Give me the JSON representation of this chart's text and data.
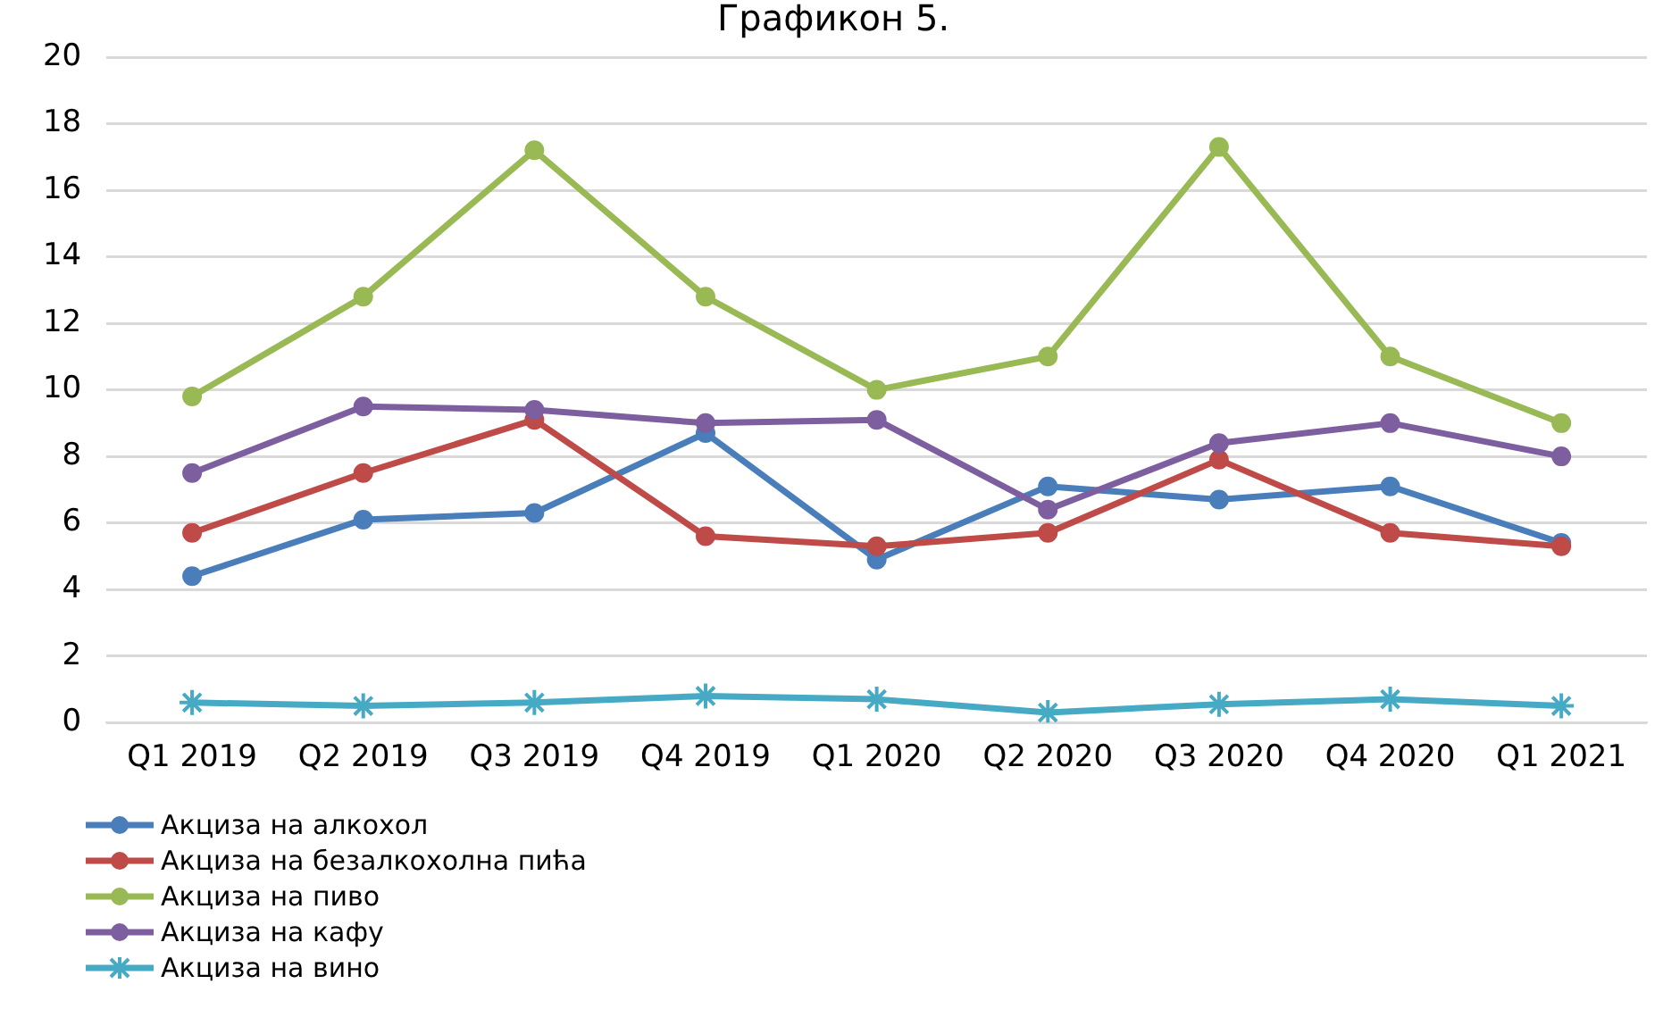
{
  "chart_data": {
    "type": "line",
    "title": "Графикон 5.",
    "categories": [
      "Q1 2019",
      "Q2 2019",
      "Q3 2019",
      "Q4 2019",
      "Q1 2020",
      "Q2 2020",
      "Q3 2020",
      "Q4 2020",
      "Q1 2021"
    ],
    "series": [
      {
        "name": "Акциза на алкохол",
        "color": "#4a7ebb",
        "marker": "circle",
        "values": [
          4.4,
          6.1,
          6.3,
          8.7,
          4.9,
          7.1,
          6.7,
          7.1,
          5.4
        ]
      },
      {
        "name": "Акциза на безалкохолна пића",
        "color": "#be4b48",
        "marker": "circle",
        "values": [
          5.7,
          7.5,
          9.1,
          5.6,
          5.3,
          5.7,
          7.9,
          5.7,
          5.3
        ]
      },
      {
        "name": "Акциза на пиво",
        "color": "#98b954",
        "marker": "circle",
        "values": [
          9.8,
          12.8,
          17.2,
          12.8,
          10.0,
          11.0,
          17.3,
          11.0,
          9.0
        ]
      },
      {
        "name": "Акциза на кафу",
        "color": "#7d5fa0",
        "marker": "circle",
        "values": [
          7.5,
          9.5,
          9.4,
          9.0,
          9.1,
          6.4,
          8.4,
          9.0,
          8.0
        ]
      },
      {
        "name": "Акциза на вино",
        "color": "#46aac5",
        "marker": "cross",
        "values": [
          0.6,
          0.5,
          0.6,
          0.8,
          0.7,
          0.3,
          0.55,
          0.7,
          0.5
        ]
      }
    ],
    "ylim": [
      0,
      20
    ],
    "yticks": [
      0,
      2,
      4,
      6,
      8,
      10,
      12,
      14,
      16,
      18,
      20
    ],
    "grid": "y",
    "legend": "bottom left",
    "line_style": "solid"
  }
}
